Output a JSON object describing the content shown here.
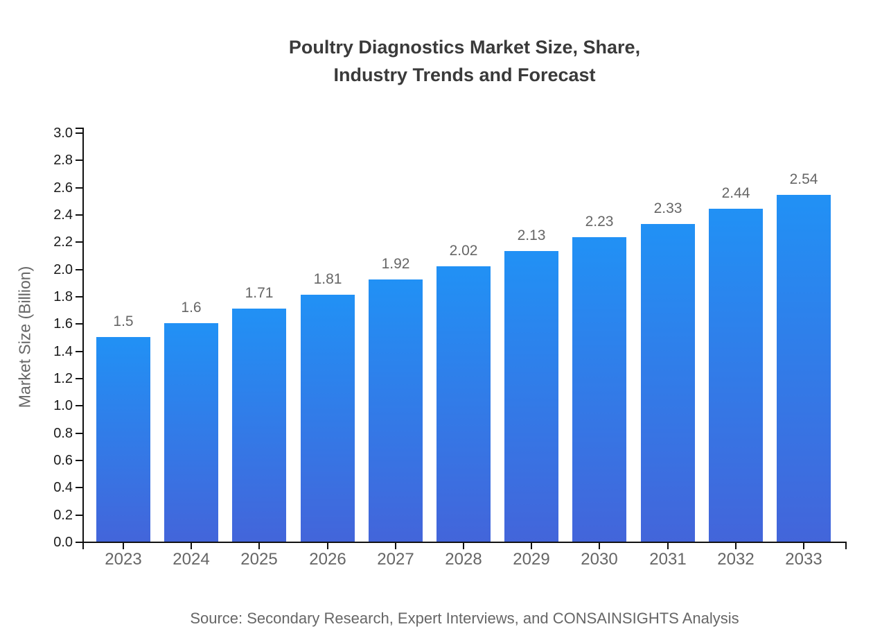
{
  "chart_data": {
    "type": "bar",
    "title_lines": [
      "Poultry Diagnostics Market Size, Share,",
      "Industry Trends and Forecast"
    ],
    "categories": [
      "2023",
      "2024",
      "2025",
      "2026",
      "2027",
      "2028",
      "2029",
      "2030",
      "2031",
      "2032",
      "2033"
    ],
    "values": [
      1.5,
      1.6,
      1.71,
      1.81,
      1.92,
      2.02,
      2.13,
      2.23,
      2.33,
      2.44,
      2.54
    ],
    "value_labels": [
      "1.5",
      "1.6",
      "1.71",
      "1.81",
      "1.92",
      "2.02",
      "2.13",
      "2.23",
      "2.33",
      "2.44",
      "2.54"
    ],
    "xlabel": "",
    "ylabel": "Market Size (Billion)",
    "ylim": [
      0.0,
      3.0
    ],
    "yticks": [
      "0.0",
      "0.2",
      "0.4",
      "0.6",
      "0.8",
      "1.0",
      "1.2",
      "1.4",
      "1.6",
      "1.8",
      "2.0",
      "2.2",
      "2.4",
      "2.6",
      "2.8",
      "3.0"
    ],
    "grid": false,
    "legend": "none",
    "source_note": "Source: Secondary Research, Expert Interviews, and CONSAINSIGHTS Analysis",
    "colors": {
      "bar_gradient_top": "#2191f5",
      "bar_gradient_bottom": "#4365da",
      "axis_line": "#111111",
      "ytick_label": "#1a1a1a",
      "xtick_label": "#666666",
      "value_label": "#666666",
      "title_text": "#3a3a3a",
      "axis_title_text": "#666666",
      "source_text": "#666666"
    }
  }
}
